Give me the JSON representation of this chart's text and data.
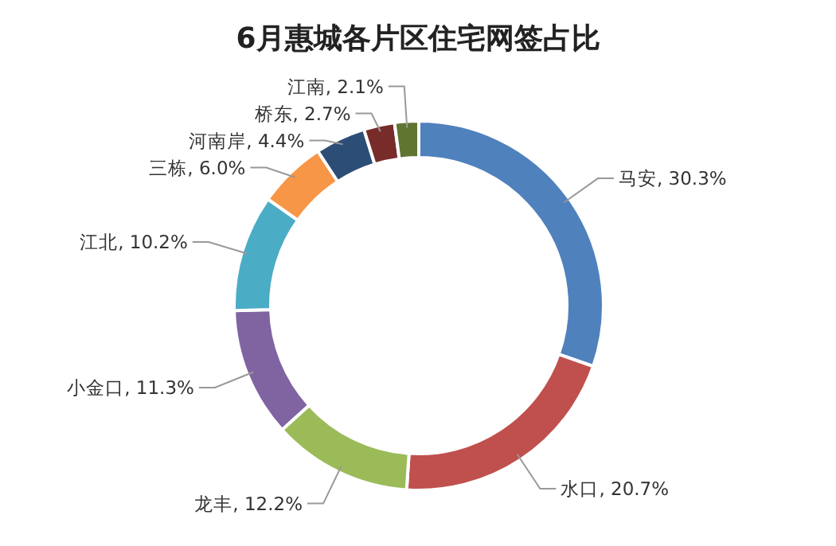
{
  "chart_data": {
    "type": "donut",
    "title": "6月惠城各片区住宅网签占比",
    "categories": [
      "马安",
      "水口",
      "龙丰",
      "小金口",
      "江北",
      "三栋",
      "河南岸",
      "桥东",
      "江南"
    ],
    "values": [
      30.3,
      20.7,
      12.2,
      11.3,
      10.2,
      6.0,
      4.4,
      2.7,
      2.1
    ],
    "colors": [
      "#4f81bd",
      "#c0504d",
      "#9bbb59",
      "#8064a2",
      "#4bacc6",
      "#f79646",
      "#2c4d75",
      "#772c2a",
      "#5f7530"
    ],
    "value_labels": [
      ", 30.3%",
      ", 20.7%",
      ", 12.2%",
      ", 11.3%",
      ", 10.2%",
      ", 6.0%",
      ", 4.4%",
      ", 2.7%",
      ", 2.1%"
    ]
  }
}
